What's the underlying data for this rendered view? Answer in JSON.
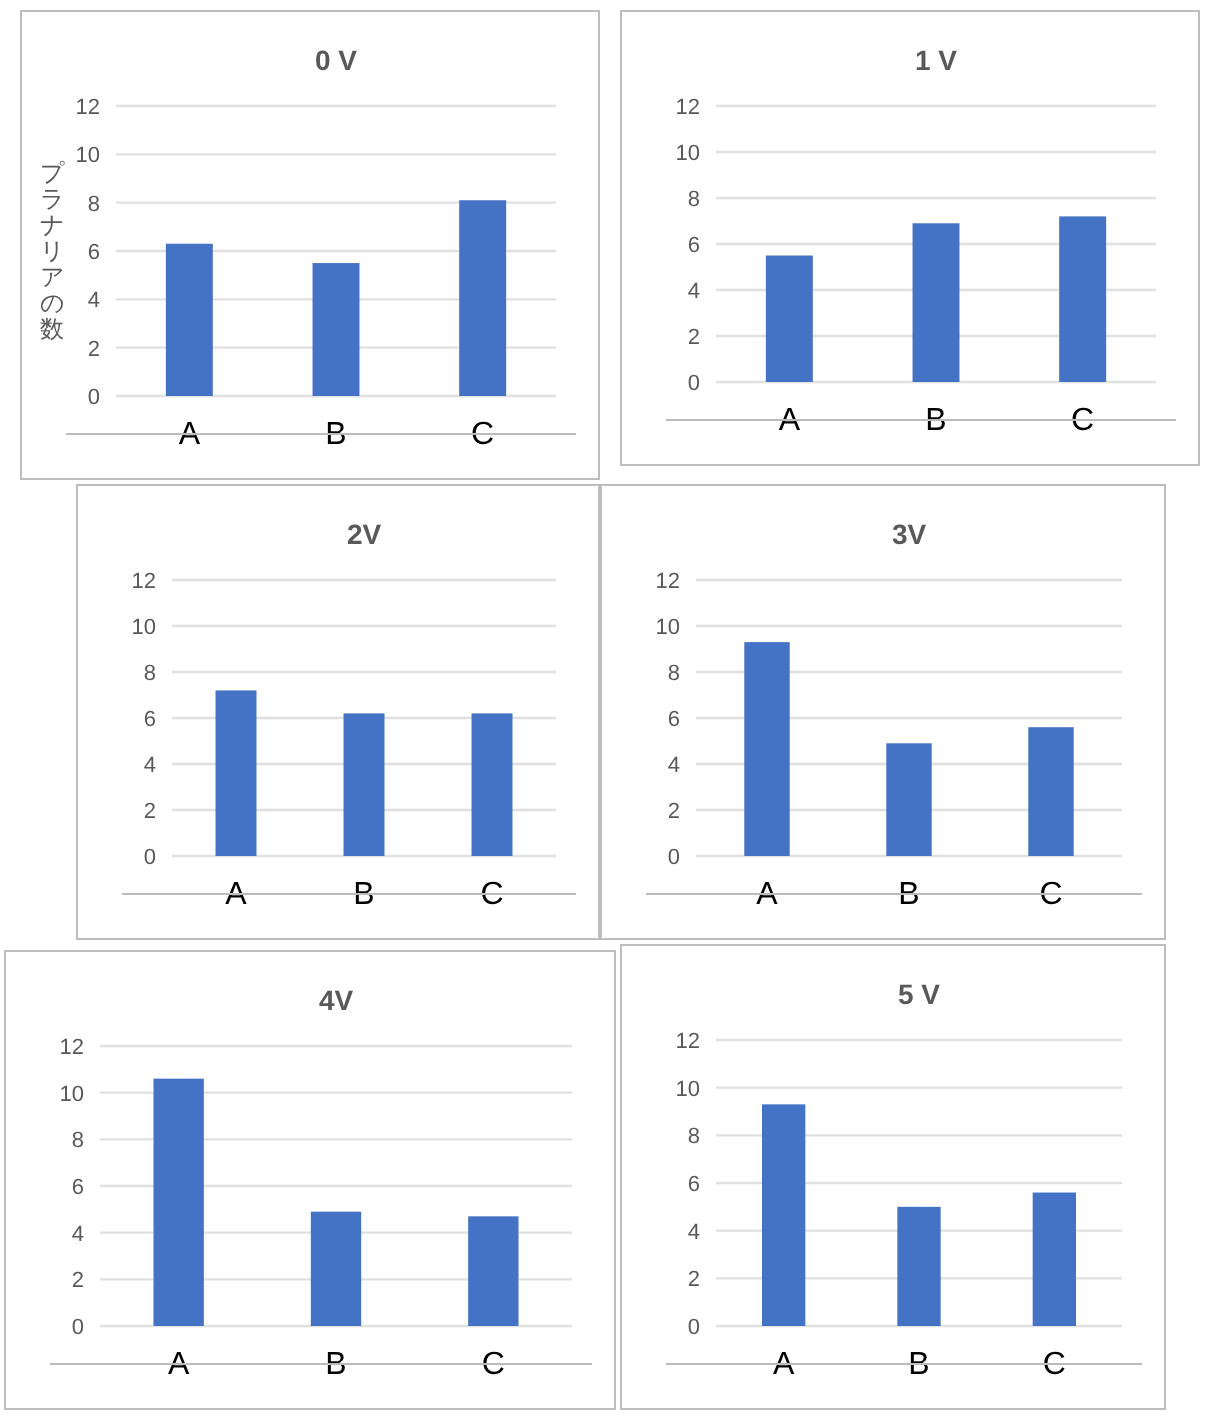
{
  "chart_data": [
    {
      "type": "bar",
      "title": "0 V",
      "ylabel": "プラナリアの数",
      "categories": [
        "A",
        "B",
        "C"
      ],
      "values": [
        6.3,
        5.5,
        8.1
      ],
      "color": "#4472c4",
      "ylim": [
        0,
        12
      ],
      "yticks": [
        0,
        2,
        4,
        6,
        8,
        10,
        12
      ],
      "grid": "y"
    },
    {
      "type": "bar",
      "title": "1 V",
      "categories": [
        "A",
        "B",
        "C"
      ],
      "values": [
        5.5,
        6.9,
        7.2
      ],
      "color": "#4472c4",
      "ylim": [
        0,
        12
      ],
      "yticks": [
        0,
        2,
        4,
        6,
        8,
        10,
        12
      ],
      "grid": "y"
    },
    {
      "type": "bar",
      "title": "2V",
      "categories": [
        "A",
        "B",
        "C"
      ],
      "values": [
        7.2,
        6.2,
        6.2
      ],
      "color": "#4472c4",
      "ylim": [
        0,
        12
      ],
      "yticks": [
        0,
        2,
        4,
        6,
        8,
        10,
        12
      ],
      "grid": "y"
    },
    {
      "type": "bar",
      "title": "3V",
      "categories": [
        "A",
        "B",
        "C"
      ],
      "values": [
        9.3,
        4.9,
        5.6
      ],
      "color": "#4472c4",
      "ylim": [
        0,
        12
      ],
      "yticks": [
        0,
        2,
        4,
        6,
        8,
        10,
        12
      ],
      "grid": "y"
    },
    {
      "type": "bar",
      "title": "4V",
      "categories": [
        "A",
        "B",
        "C"
      ],
      "values": [
        10.6,
        4.9,
        4.7
      ],
      "color": "#4472c4",
      "ylim": [
        0,
        12
      ],
      "yticks": [
        0,
        2,
        4,
        6,
        8,
        10,
        12
      ],
      "grid": "y"
    },
    {
      "type": "bar",
      "title": "5 V",
      "categories": [
        "A",
        "B",
        "C"
      ],
      "values": [
        9.3,
        5.0,
        5.6
      ],
      "color": "#4472c4",
      "ylim": [
        0,
        12
      ],
      "yticks": [
        0,
        2,
        4,
        6,
        8,
        10,
        12
      ],
      "grid": "y"
    }
  ]
}
